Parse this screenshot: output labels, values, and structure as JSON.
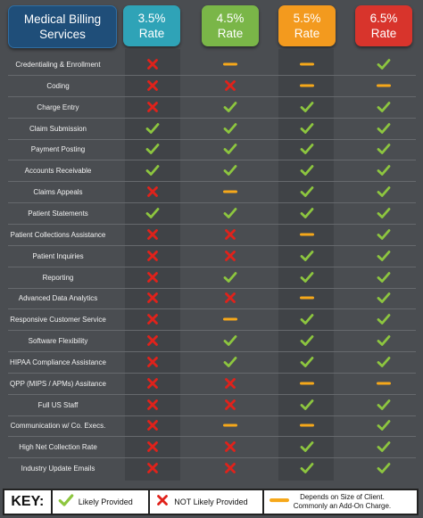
{
  "header": {
    "title_line1": "Medical Billing",
    "title_line2": "Services",
    "columns": [
      {
        "pct": "3.5%",
        "word": "Rate",
        "color": "#2fa3b7"
      },
      {
        "pct": "4.5%",
        "word": "Rate",
        "color": "#7ab648"
      },
      {
        "pct": "5.5%",
        "word": "Rate",
        "color": "#f39a1e"
      },
      {
        "pct": "6.5%",
        "word": "Rate",
        "color": "#d8342c"
      }
    ]
  },
  "colors": {
    "check": "#8dc63f",
    "x": "#e0221b",
    "dash": "#f6a81a",
    "background": "#4a4d51",
    "title_box": "#1f4e79"
  },
  "rows": [
    {
      "label": "Credentialing & Enrollment",
      "marks": [
        "x",
        "dash",
        "dash",
        "check"
      ]
    },
    {
      "label": "Coding",
      "marks": [
        "x",
        "x",
        "dash",
        "dash"
      ]
    },
    {
      "label": "Charge Entry",
      "marks": [
        "x",
        "check",
        "check",
        "check"
      ]
    },
    {
      "label": "Claim Submission",
      "marks": [
        "check",
        "check",
        "check",
        "check"
      ]
    },
    {
      "label": "Payment Posting",
      "marks": [
        "check",
        "check",
        "check",
        "check"
      ]
    },
    {
      "label": "Accounts Receivable",
      "marks": [
        "check",
        "check",
        "check",
        "check"
      ]
    },
    {
      "label": "Claims Appeals",
      "marks": [
        "x",
        "dash",
        "check",
        "check"
      ]
    },
    {
      "label": "Patient Statements",
      "marks": [
        "check",
        "check",
        "check",
        "check"
      ]
    },
    {
      "label": "Patient Collections Assistance",
      "marks": [
        "x",
        "x",
        "dash",
        "check"
      ]
    },
    {
      "label": "Patient Inquiries",
      "marks": [
        "x",
        "x",
        "check",
        "check"
      ]
    },
    {
      "label": "Reporting",
      "marks": [
        "x",
        "check",
        "check",
        "check"
      ]
    },
    {
      "label": "Advanced Data Analytics",
      "marks": [
        "x",
        "x",
        "dash",
        "check"
      ]
    },
    {
      "label": "Responsive Customer Service",
      "marks": [
        "x",
        "dash",
        "check",
        "check"
      ]
    },
    {
      "label": "Software Flexibility",
      "marks": [
        "x",
        "check",
        "check",
        "check"
      ]
    },
    {
      "label": "HIPAA Compliance Assistance",
      "marks": [
        "x",
        "check",
        "check",
        "check"
      ]
    },
    {
      "label": "QPP (MIPS / APMs) Assitance",
      "marks": [
        "x",
        "x",
        "dash",
        "dash"
      ]
    },
    {
      "label": "Full US Staff",
      "marks": [
        "x",
        "x",
        "check",
        "check"
      ]
    },
    {
      "label": "Communication w/ Co. Execs.",
      "marks": [
        "x",
        "dash",
        "dash",
        "check"
      ]
    },
    {
      "label": "High Net Collection Rate",
      "marks": [
        "x",
        "x",
        "check",
        "check"
      ]
    },
    {
      "label": "Industry Update Emails",
      "marks": [
        "x",
        "x",
        "check",
        "check"
      ]
    }
  ],
  "key": {
    "title": "KEY:",
    "check_text": "Likely Provided",
    "x_text": "NOT Likely Provided",
    "dash_line1": "Depends on Size of Client.",
    "dash_line2": "Commonly an Add-On Charge."
  }
}
